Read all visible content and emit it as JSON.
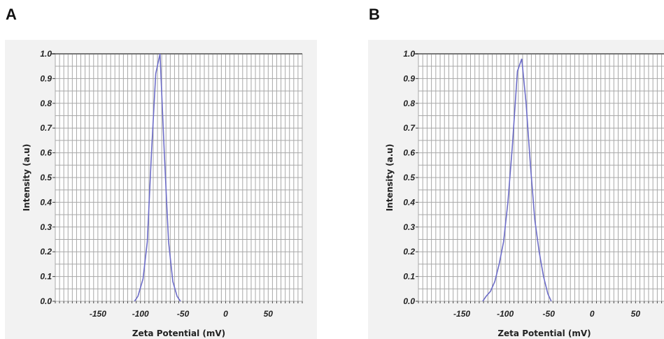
{
  "panels": [
    {
      "letter": "A"
    },
    {
      "letter": "B"
    }
  ],
  "chart_data": [
    {
      "type": "line",
      "title": "",
      "xlabel": "Zeta Potential (mV)",
      "ylabel": "Intensity (a.u)",
      "xlim": [
        -200,
        90
      ],
      "ylim": [
        0.0,
        1.0
      ],
      "x_ticks": [
        -150,
        -100,
        -50,
        0,
        50
      ],
      "y_ticks": [
        "0.0",
        "0.1",
        "0.2",
        "0.3",
        "0.4",
        "0.5",
        "0.6",
        "0.7",
        "0.8",
        "0.9",
        "1.0"
      ],
      "grid": true,
      "series": [
        {
          "color": "#6d6dc8",
          "x": [
            -107,
            -103,
            -97,
            -92,
            -87,
            -82,
            -77,
            -72,
            -67,
            -62,
            -57,
            -53
          ],
          "y": [
            0.0,
            0.02,
            0.09,
            0.24,
            0.6,
            0.92,
            1.0,
            0.6,
            0.24,
            0.08,
            0.02,
            0.0
          ]
        }
      ]
    },
    {
      "type": "line",
      "title": "",
      "xlabel": "Zeta Potential (mV)",
      "ylabel": "Intensity (a.u)",
      "xlim": [
        -200,
        90
      ],
      "ylim": [
        0.0,
        1.0
      ],
      "x_ticks": [
        -150,
        -100,
        -50,
        0,
        50
      ],
      "y_ticks": [
        "0.0",
        "0.1",
        "0.2",
        "0.3",
        "0.4",
        "0.5",
        "0.6",
        "0.7",
        "0.8",
        "0.9",
        "1.0"
      ],
      "grid": true,
      "series": [
        {
          "color": "#6d6dc8",
          "x": [
            -126,
            -122,
            -117,
            -112,
            -107,
            -102,
            -97,
            -92,
            -86,
            -81,
            -76,
            -71,
            -66,
            -61,
            -56,
            -51,
            -47
          ],
          "y": [
            0.0,
            0.02,
            0.04,
            0.08,
            0.15,
            0.24,
            0.4,
            0.62,
            0.93,
            0.98,
            0.8,
            0.55,
            0.33,
            0.2,
            0.1,
            0.03,
            0.0
          ]
        }
      ]
    }
  ]
}
